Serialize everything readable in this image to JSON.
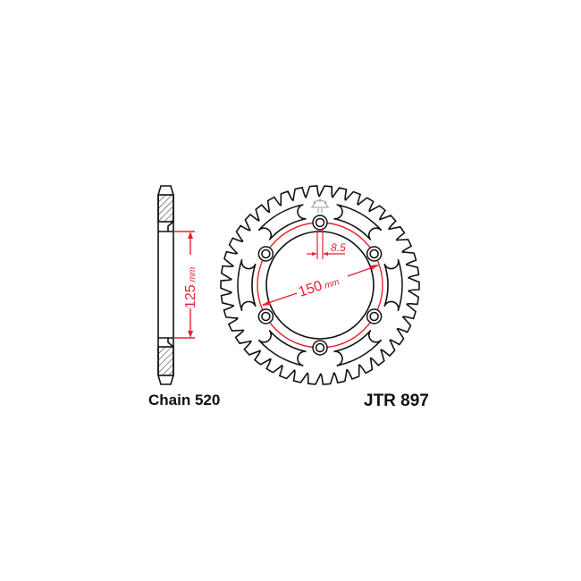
{
  "diagram": {
    "side_dimension": {
      "value": "125",
      "unit": "mm"
    },
    "bolt_circle_dimension": {
      "value": "150",
      "unit": "mm"
    },
    "bolt_hole_dimension": {
      "value": "8.5"
    },
    "chain_label": "Chain 520",
    "part_number": "JTR 897",
    "bolt_holes": 6,
    "lightening_slots": 6,
    "teeth": 42,
    "line_color": "#111111",
    "dimension_color": "#e8202a"
  }
}
